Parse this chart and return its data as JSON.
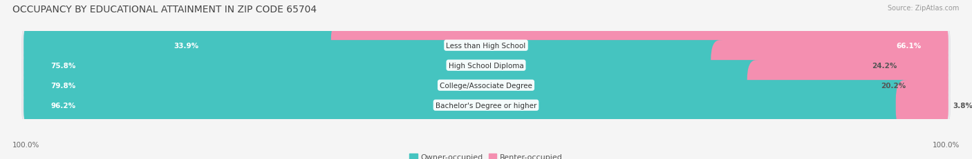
{
  "title": "OCCUPANCY BY EDUCATIONAL ATTAINMENT IN ZIP CODE 65704",
  "source": "Source: ZipAtlas.com",
  "categories": [
    "Less than High School",
    "High School Diploma",
    "College/Associate Degree",
    "Bachelor's Degree or higher"
  ],
  "owner_values": [
    33.9,
    75.8,
    79.8,
    96.2
  ],
  "renter_values": [
    66.1,
    24.2,
    20.2,
    3.8
  ],
  "owner_color": "#45c4c0",
  "renter_color": "#f48fb0",
  "background_color": "#f5f5f5",
  "bar_bg_color": "#e8e8ec",
  "bar_shadow_color": "#d0d0d8",
  "title_fontsize": 10,
  "label_fontsize": 7.5,
  "tick_fontsize": 7.5,
  "source_fontsize": 7,
  "legend_fontsize": 8,
  "axis_label_left": "100.0%",
  "axis_label_right": "100.0%"
}
